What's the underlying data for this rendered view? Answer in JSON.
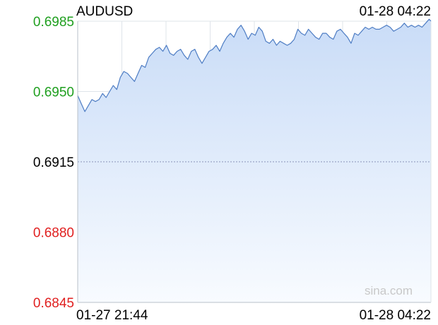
{
  "chart_data": {
    "type": "area",
    "title": "AUDUSD",
    "timestamp": "01-28 04:22",
    "xlabel": "",
    "ylabel": "",
    "ylim": [
      0.6845,
      0.6985
    ],
    "yticks": [
      "0.6985",
      "0.6950",
      "0.6915",
      "0.6880",
      "0.6845"
    ],
    "ytick_values": [
      0.6985,
      0.695,
      0.6915,
      0.688,
      0.6845
    ],
    "reference_value": 0.6915,
    "x_start_label": "01-27 21:44",
    "x_end_label": "01-28 04:22",
    "x_minutes_range": [
      0,
      398
    ],
    "grid": true,
    "watermark": "sina.com",
    "colors": {
      "line": "#4e7dc4",
      "fill_top": "#c9dcf7",
      "fill_bottom": "#f8fbff",
      "up": "#1f9f1f",
      "down": "#e02020",
      "neutral": "#000000",
      "grid": "#dfe4ea",
      "ref_line": "#8a93b8"
    },
    "series": [
      {
        "x": [
          0,
          4,
          8,
          12,
          16,
          20,
          24,
          28,
          32,
          36,
          40,
          44,
          48,
          52,
          56,
          60,
          64,
          68,
          72,
          76,
          80,
          84,
          88,
          92,
          96,
          100,
          104,
          108,
          112,
          116,
          120,
          124,
          128,
          132,
          136,
          140,
          144,
          148,
          152,
          156,
          160,
          164,
          168,
          172,
          176,
          180,
          184,
          188,
          192,
          196,
          200,
          204,
          208,
          212,
          216,
          220,
          224,
          228,
          232,
          236,
          240,
          244,
          248,
          252,
          256,
          260,
          264,
          268,
          272,
          276,
          280,
          284,
          288,
          292,
          296,
          300,
          304,
          308,
          312,
          316,
          320,
          324,
          328,
          332,
          336,
          340,
          344,
          348,
          352,
          356,
          360,
          364,
          368,
          372,
          376,
          380,
          384,
          388,
          392,
          396,
          398
        ],
        "values": [
          0.6948,
          0.6944,
          0.694,
          0.6943,
          0.6946,
          0.6945,
          0.6946,
          0.6949,
          0.6947,
          0.695,
          0.6953,
          0.6951,
          0.6957,
          0.696,
          0.6959,
          0.6957,
          0.6955,
          0.6959,
          0.6963,
          0.6962,
          0.6967,
          0.6969,
          0.6971,
          0.6972,
          0.697,
          0.6973,
          0.6969,
          0.6968,
          0.697,
          0.6971,
          0.6968,
          0.6966,
          0.697,
          0.6971,
          0.6967,
          0.6964,
          0.6967,
          0.697,
          0.6971,
          0.6973,
          0.697,
          0.6974,
          0.6977,
          0.6979,
          0.6977,
          0.6981,
          0.6983,
          0.698,
          0.6976,
          0.6979,
          0.6978,
          0.6982,
          0.698,
          0.6975,
          0.6974,
          0.6976,
          0.6973,
          0.6975,
          0.6974,
          0.6973,
          0.6974,
          0.6976,
          0.6981,
          0.6979,
          0.6978,
          0.6981,
          0.6979,
          0.6977,
          0.6976,
          0.6979,
          0.6979,
          0.6977,
          0.6976,
          0.698,
          0.6981,
          0.6979,
          0.6977,
          0.6974,
          0.6979,
          0.6978,
          0.698,
          0.6982,
          0.6981,
          0.6982,
          0.6981,
          0.6981,
          0.6982,
          0.6983,
          0.6982,
          0.698,
          0.6981,
          0.6982,
          0.6984,
          0.6982,
          0.6983,
          0.6982,
          0.6983,
          0.6982,
          0.6984,
          0.6986,
          0.6985
        ]
      }
    ]
  }
}
